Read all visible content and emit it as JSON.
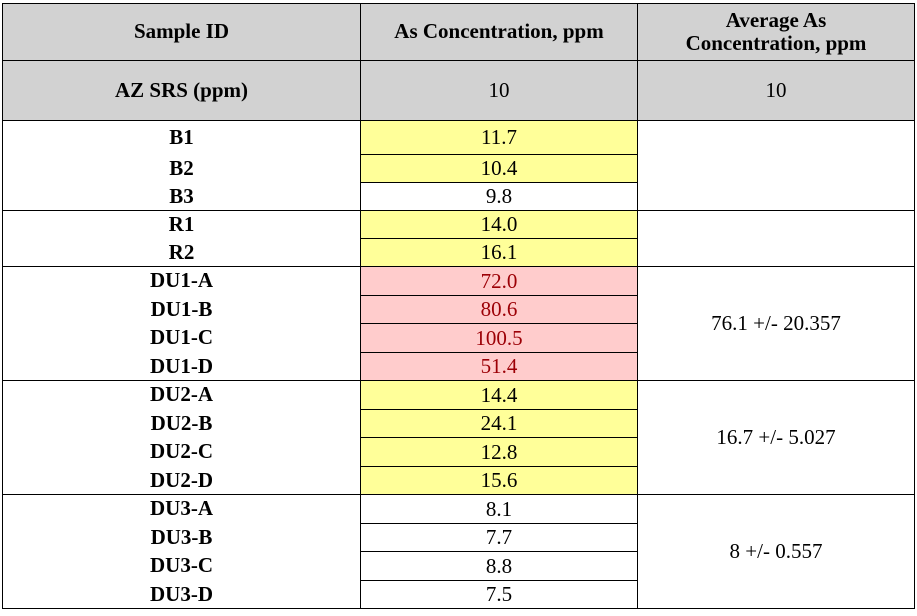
{
  "header": {
    "col1": "Sample ID",
    "col2": "As Concentration, ppm",
    "col3": "Average As Concentration, ppm"
  },
  "reference": {
    "label": "AZ SRS (ppm)",
    "value": "10",
    "average": "10"
  },
  "groups": [
    {
      "rows": [
        {
          "id": "B1",
          "value": "11.7",
          "highlight": "yellow"
        },
        {
          "id": "B2",
          "value": "10.4",
          "highlight": "yellow"
        },
        {
          "id": "B3",
          "value": "9.8",
          "highlight": "none"
        }
      ],
      "average": ""
    },
    {
      "rows": [
        {
          "id": "R1",
          "value": "14.0",
          "highlight": "yellow"
        },
        {
          "id": "R2",
          "value": "16.1",
          "highlight": "yellow"
        }
      ],
      "average": ""
    },
    {
      "rows": [
        {
          "id": "DU1-A",
          "value": "72.0",
          "highlight": "red"
        },
        {
          "id": "DU1-B",
          "value": "80.6",
          "highlight": "red"
        },
        {
          "id": "DU1-C",
          "value": "100.5",
          "highlight": "red"
        },
        {
          "id": "DU1-D",
          "value": "51.4",
          "highlight": "red"
        }
      ],
      "average": "76.1 +/- 20.357"
    },
    {
      "rows": [
        {
          "id": "DU2-A",
          "value": "14.4",
          "highlight": "yellow"
        },
        {
          "id": "DU2-B",
          "value": "24.1",
          "highlight": "yellow"
        },
        {
          "id": "DU2-C",
          "value": "12.8",
          "highlight": "yellow"
        },
        {
          "id": "DU2-D",
          "value": "15.6",
          "highlight": "yellow"
        }
      ],
      "average": "16.7 +/- 5.027"
    },
    {
      "rows": [
        {
          "id": "DU3-A",
          "value": "8.1",
          "highlight": "none"
        },
        {
          "id": "DU3-B",
          "value": "7.7",
          "highlight": "none"
        },
        {
          "id": "DU3-C",
          "value": "8.8",
          "highlight": "none"
        },
        {
          "id": "DU3-D",
          "value": "7.5",
          "highlight": "none"
        }
      ],
      "average": "8 +/- 0.557"
    }
  ],
  "colors": {
    "header_bg": "#d2d2d2",
    "yellow": "#ffff99",
    "red_bg": "#ffcccc",
    "red_text": "#9c0006"
  }
}
